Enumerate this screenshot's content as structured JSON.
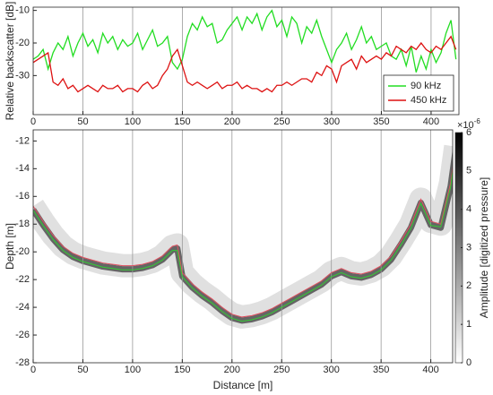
{
  "chart_data": [
    {
      "type": "line",
      "ylabel": "Relative backscatter [dB]",
      "xlim": [
        0,
        428
      ],
      "xticks": [
        0,
        50,
        100,
        150,
        200,
        250,
        300,
        350,
        400
      ],
      "ylim": [
        -42,
        -9
      ],
      "yticks": [
        -10,
        -20,
        -30
      ],
      "grid": "x",
      "legend": "lower right",
      "x": [
        0,
        5,
        10,
        15,
        20,
        25,
        30,
        35,
        40,
        45,
        50,
        55,
        60,
        65,
        70,
        75,
        80,
        85,
        90,
        95,
        100,
        105,
        110,
        115,
        120,
        125,
        130,
        135,
        140,
        145,
        150,
        155,
        160,
        165,
        170,
        175,
        180,
        185,
        190,
        195,
        200,
        205,
        210,
        215,
        220,
        225,
        230,
        235,
        240,
        245,
        250,
        255,
        260,
        265,
        270,
        275,
        280,
        285,
        290,
        295,
        300,
        305,
        310,
        315,
        320,
        325,
        330,
        335,
        340,
        345,
        350,
        355,
        360,
        365,
        370,
        375,
        380,
        385,
        390,
        395,
        400,
        405,
        410,
        415,
        420,
        425
      ],
      "series": [
        {
          "name": "90 kHz",
          "color": "#22dd22",
          "values": [
            -25,
            -24,
            -22,
            -28,
            -23,
            -20,
            -22,
            -18,
            -24,
            -20,
            -17,
            -21,
            -19,
            -23,
            -17,
            -20,
            -18,
            -22,
            -19,
            -21,
            -20,
            -17,
            -22,
            -19,
            -16,
            -21,
            -20,
            -18,
            -26,
            -28,
            -25,
            -18,
            -14,
            -16,
            -12,
            -15,
            -14,
            -20,
            -19,
            -16,
            -14,
            -12,
            -16,
            -12,
            -14,
            -11,
            -16,
            -12,
            -10,
            -15,
            -13,
            -18,
            -12,
            -14,
            -20,
            -15,
            -17,
            -13,
            -18,
            -22,
            -26,
            -22,
            -20,
            -17,
            -22,
            -19,
            -15,
            -20,
            -18,
            -22,
            -21,
            -20,
            -24,
            -25,
            -22,
            -27,
            -21,
            -29,
            -24,
            -28,
            -22,
            -26,
            -23,
            -17,
            -13,
            -25
          ]
        },
        {
          "name": "450 kHz",
          "color": "#dd1111",
          "values": [
            -26,
            -25,
            -24,
            -23,
            -32,
            -33,
            -31,
            -34,
            -33,
            -35,
            -34,
            -33,
            -34,
            -35,
            -33,
            -34,
            -34,
            -33,
            -35,
            -34,
            -34,
            -35,
            -33,
            -32,
            -34,
            -33,
            -30,
            -28,
            -24,
            -22,
            -27,
            -32,
            -33,
            -32,
            -33,
            -34,
            -33,
            -32,
            -34,
            -33,
            -33,
            -32,
            -34,
            -33,
            -34,
            -34,
            -35,
            -34,
            -35,
            -33,
            -33,
            -32,
            -33,
            -32,
            -31,
            -31,
            -32,
            -29,
            -30,
            -27,
            -28,
            -32,
            -27,
            -26,
            -25,
            -28,
            -24,
            -26,
            -25,
            -24,
            -25,
            -23,
            -24,
            -21,
            -22,
            -23,
            -21,
            -22,
            -20,
            -22,
            -23,
            -21,
            -22,
            -20,
            -18,
            -22
          ]
        }
      ]
    },
    {
      "type": "line",
      "xlabel": "Distance [m]",
      "ylabel": "Depth [m]",
      "xlim": [
        0,
        422
      ],
      "xticks": [
        0,
        50,
        100,
        150,
        200,
        250,
        300,
        350,
        400
      ],
      "ylim": [
        -28,
        -11.2
      ],
      "yticks": [
        -12,
        -14,
        -16,
        -18,
        -20,
        -22,
        -24,
        -26,
        -28
      ],
      "grid": "x",
      "x": [
        0,
        10,
        20,
        30,
        40,
        50,
        60,
        70,
        80,
        90,
        100,
        110,
        120,
        130,
        140,
        145,
        150,
        160,
        170,
        180,
        190,
        200,
        210,
        220,
        230,
        240,
        250,
        260,
        270,
        280,
        290,
        300,
        310,
        320,
        330,
        340,
        350,
        360,
        370,
        380,
        390,
        400,
        410,
        420,
        425
      ],
      "series": [
        {
          "color": "#e05060",
          "values": [
            -16.7,
            -17.8,
            -18.8,
            -19.6,
            -20.1,
            -20.4,
            -20.6,
            -20.8,
            -20.9,
            -21,
            -21,
            -20.9,
            -20.7,
            -20.3,
            -19.6,
            -19.5,
            -21.5,
            -22.3,
            -22.9,
            -23.4,
            -24,
            -24.5,
            -24.7,
            -24.6,
            -24.4,
            -24.1,
            -23.7,
            -23.3,
            -22.9,
            -22.5,
            -22.1,
            -21.5,
            -21.2,
            -21.5,
            -21.6,
            -21.4,
            -21,
            -20.3,
            -19.2,
            -18,
            -16.2,
            -17.8,
            -18,
            -15,
            -12.4
          ]
        },
        {
          "color": "#33cc33",
          "values": [
            -17,
            -18.1,
            -19.1,
            -19.9,
            -20.4,
            -20.7,
            -20.9,
            -21.1,
            -21.2,
            -21.3,
            -21.3,
            -21.2,
            -21,
            -20.6,
            -19.9,
            -19.9,
            -21.8,
            -22.6,
            -23.2,
            -23.7,
            -24.3,
            -24.8,
            -25,
            -24.9,
            -24.7,
            -24.4,
            -24,
            -23.6,
            -23.2,
            -22.8,
            -22.4,
            -21.8,
            -21.5,
            -21.8,
            -21.9,
            -21.7,
            -21.3,
            -20.6,
            -19.5,
            -18.3,
            -16.5,
            -18.1,
            -18.2,
            -15.3,
            -12.6
          ]
        }
      ],
      "colorbar": {
        "label": "Amplitude [digitized pressure]",
        "lim": [
          0,
          6
        ],
        "ticks": [
          0,
          1,
          2,
          3,
          4,
          5,
          6
        ],
        "exponent_base": "×10",
        "exponent": "-6"
      }
    }
  ]
}
